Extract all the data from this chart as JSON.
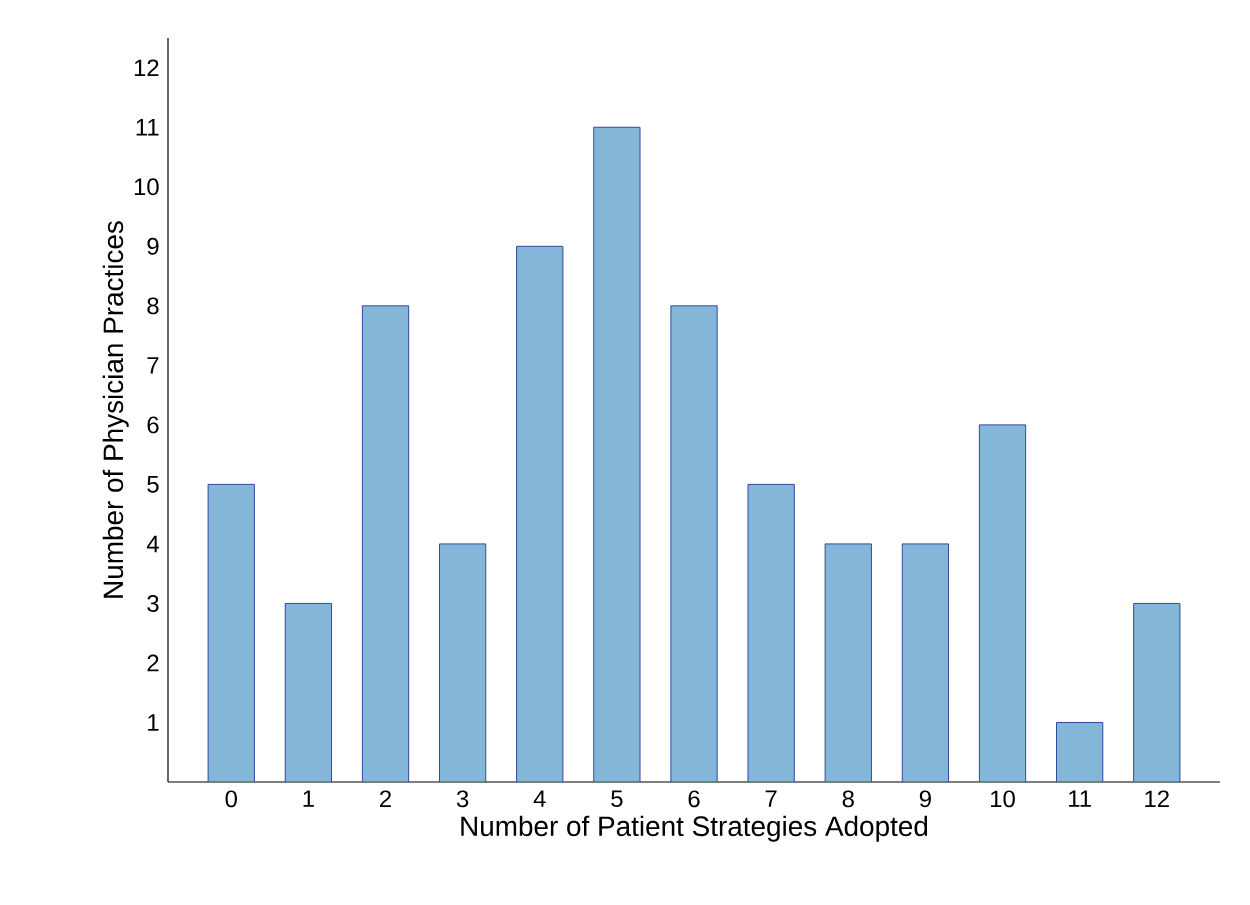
{
  "chart_data": {
    "type": "bar",
    "xlabel": "Number of Patient Strategies Adopted",
    "ylabel": "Number of Physician Practices",
    "categories": [
      "0",
      "1",
      "2",
      "3",
      "4",
      "5",
      "6",
      "7",
      "8",
      "9",
      "10",
      "11",
      "12"
    ],
    "values": [
      5,
      3,
      8,
      4,
      9,
      11,
      8,
      5,
      4,
      4,
      6,
      1,
      3
    ],
    "color": "#84b6d8",
    "ylim": [
      0,
      12.5
    ],
    "yticks": [
      1,
      2,
      3,
      4,
      5,
      6,
      7,
      8,
      9,
      10,
      11,
      12
    ],
    "grid": false
  }
}
